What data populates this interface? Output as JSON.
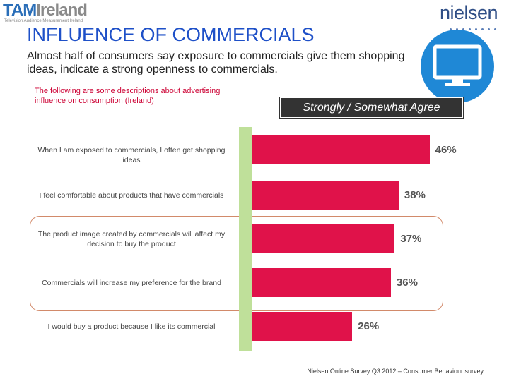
{
  "logos": {
    "tam_part1": "TAM",
    "tam_part2": "Ireland",
    "tam_tagline": "Television Audience Measurement Ireland",
    "nielsen": "nielsen"
  },
  "header": {
    "title": "INFLUENCE OF COMMERCIALS",
    "subtitle": "Almost half of consumers say exposure to commercials give them shopping ideas, indicate a strong openness to commercials."
  },
  "description": "The following are some descriptions about advertising influence on consumption (Ireland)",
  "legend_box": "Strongly / Somewhat Agree",
  "colors": {
    "bar": "#e0124a",
    "axis": "#bfe09a",
    "title": "#1e50c8",
    "badge": "#1f88d6"
  },
  "chart_data": {
    "type": "bar",
    "orientation": "horizontal",
    "categories": [
      "When I am exposed to commercials, I often get shopping ideas",
      "I feel comfortable about products that have commercials",
      "The product image created by commercials will affect my decision to buy the product",
      "Commercials will increase my preference for the brand",
      "I would buy a product because I like its commercial"
    ],
    "values": [
      46,
      38,
      37,
      36,
      26
    ],
    "data_labels": [
      "46%",
      "38%",
      "37%",
      "36%",
      "26%"
    ],
    "series": [
      {
        "name": "Strongly / Somewhat Agree",
        "values": [
          46,
          38,
          37,
          36,
          26
        ]
      }
    ],
    "highlighted_categories": [
      2,
      3
    ]
  },
  "source": "Nielsen Online Survey Q3 2012 – Consumer Behaviour survey"
}
